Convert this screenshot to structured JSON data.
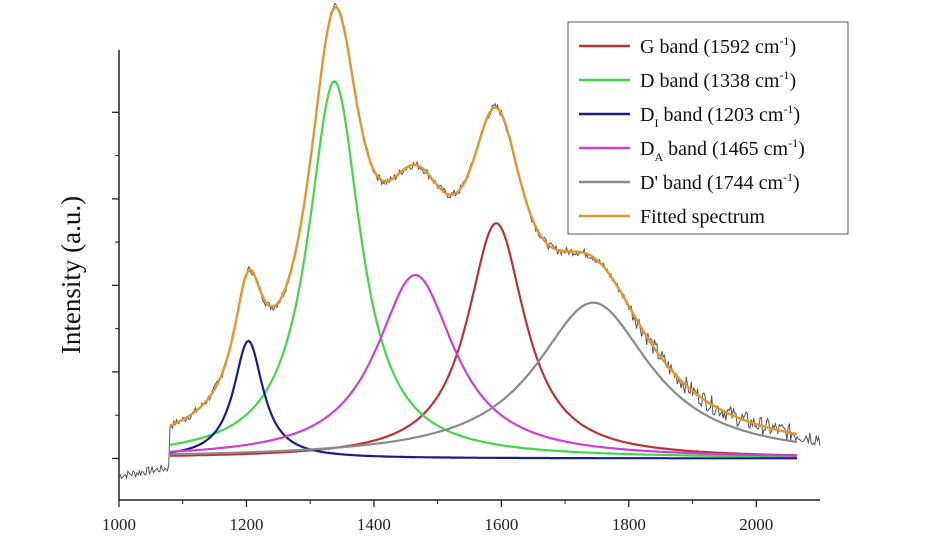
{
  "chart_data": {
    "type": "line",
    "title": "",
    "xlabel": "",
    "ylabel": "Intensity (a.u.)",
    "xlim": [
      1000,
      2100
    ],
    "ylim": [
      0,
      1.3
    ],
    "x_ticks": [
      1000,
      1200,
      1400,
      1600,
      1800,
      2000
    ],
    "x_tick_labels": [
      "1000",
      "1200",
      "1400",
      "1600",
      "1800",
      "2000"
    ],
    "y_ticks": [
      0.12,
      0.37,
      0.62,
      0.87,
      1.12
    ],
    "fit_range": [
      1080,
      2065
    ],
    "baseline": 0.12,
    "components": [
      {
        "id": "g",
        "prefix": "G",
        "sub": "",
        "label": "band (1592 cm",
        "label_close": ")",
        "sup": "-1",
        "center": 1592,
        "height": 0.68,
        "hwhm": 55,
        "color": "#b83236"
      },
      {
        "id": "d",
        "prefix": "D",
        "sub": "",
        "label": "band (1338 cm",
        "label_close": ")",
        "sup": "-1",
        "center": 1338,
        "height": 1.09,
        "hwhm": 50,
        "color": "#3fd84a"
      },
      {
        "id": "d1",
        "prefix": "D",
        "sub": "I",
        "label": "band (1203 cm",
        "label_close": ")",
        "sup": "-1",
        "center": 1203,
        "height": 0.34,
        "hwhm": 28,
        "color": "#1b1b8a"
      },
      {
        "id": "da",
        "prefix": "D",
        "sub": "A",
        "label": "band (1465 cm",
        "label_close": ")",
        "sup": "-1",
        "center": 1465,
        "height": 0.53,
        "hwhm": 75,
        "color": "#cc3fd6"
      },
      {
        "id": "dp",
        "prefix": "D'",
        "sub": "",
        "label": "band (1744 cm",
        "label_close": ")",
        "sup": "-1",
        "center": 1744,
        "height": 0.45,
        "hwhm": 110,
        "color": "#8a8a8a"
      }
    ],
    "fit": {
      "label": "Fitted spectrum",
      "color": "#e3962e"
    },
    "raw": {
      "color": "#555555",
      "noise": 0.012,
      "points_range": [
        1000,
        2100
      ]
    },
    "legend_position": "top-right"
  }
}
